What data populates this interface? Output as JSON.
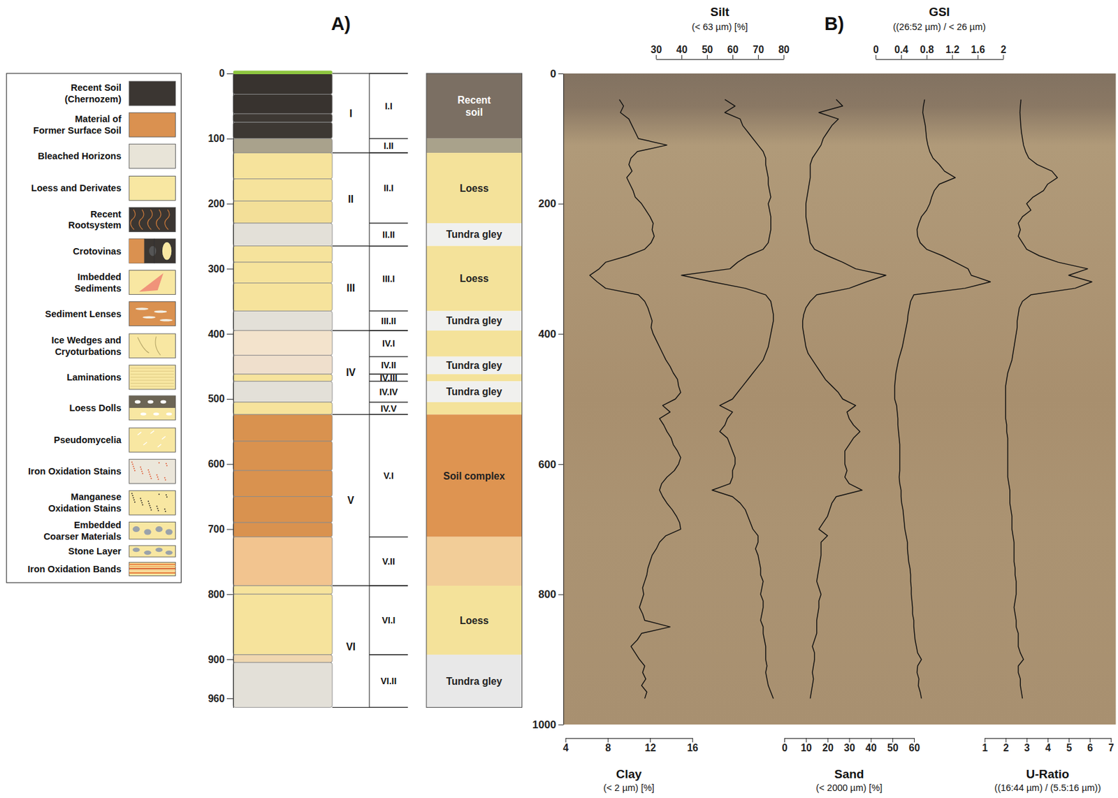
{
  "panel_labels": [
    "A)",
    "B)"
  ],
  "legend_box": {
    "items": [
      {
        "label": [
          "Recent Soil",
          "(Chernozem)"
        ],
        "color": "#3b3632"
      },
      {
        "label": [
          "Material of",
          "Former Surface Soil"
        ],
        "color": "#da9150"
      },
      {
        "label": [
          "Bleached Horizons"
        ],
        "color": "#e8e4d8"
      },
      {
        "label": [
          "Loess and Derivates"
        ],
        "color": "#f8e7a2"
      },
      {
        "label": [
          "Recent",
          "Rootsystem"
        ],
        "color": "#3b3632"
      },
      {
        "label": [
          "Crotovinas"
        ],
        "color": "#3b3632"
      },
      {
        "label": [
          "Imbedded",
          "Sediments"
        ],
        "color": "#f8e7a2"
      },
      {
        "label": [
          "Sediment Lenses"
        ],
        "color": "#da9150"
      },
      {
        "label": [
          "Ice Wedges and",
          "Cryoturbations"
        ],
        "color": "#f8e7a2"
      },
      {
        "label": [
          "Laminations"
        ],
        "color": "#f8e7a2"
      },
      {
        "label": [
          "Loess Dolls"
        ],
        "color": "#f8e7a2"
      },
      {
        "label": [
          "Pseudomycelia"
        ],
        "color": "#f8e7a2"
      },
      {
        "label": [
          "Iron Oxidation Stains"
        ],
        "color": "#ebe6da"
      },
      {
        "label": [
          "Manganese",
          "Oxidation Stains"
        ],
        "color": "#f8e7a2"
      },
      {
        "label": [
          "Embedded",
          "Coarser Materials"
        ],
        "color": "#f8e7a2"
      },
      {
        "label": [
          "Stone Layer"
        ],
        "color": "#f8e7a2"
      },
      {
        "label": [
          "Iron Oxidation Bands"
        ],
        "color": "#f8e7a2"
      }
    ]
  },
  "stratigraphy": {
    "ylim": [
      0,
      974
    ],
    "yticks": [
      0,
      100,
      200,
      300,
      400,
      500,
      600,
      700,
      800,
      900,
      960
    ],
    "beds": [
      {
        "top": 0,
        "bottom": 32,
        "color": "#38332f"
      },
      {
        "top": 32,
        "bottom": 62,
        "color": "#38332f"
      },
      {
        "top": 62,
        "bottom": 75,
        "color": "#3d3833"
      },
      {
        "top": 75,
        "bottom": 100,
        "color": "#3d3833"
      },
      {
        "top": 100,
        "bottom": 122,
        "color": "#a9a28c"
      },
      {
        "top": 122,
        "bottom": 162,
        "color": "#f6e39c"
      },
      {
        "top": 162,
        "bottom": 196,
        "color": "#f6e39c"
      },
      {
        "top": 196,
        "bottom": 230,
        "color": "#f3df98"
      },
      {
        "top": 230,
        "bottom": 265,
        "color": "#e3e0d8"
      },
      {
        "top": 265,
        "bottom": 290,
        "color": "#f6e39c"
      },
      {
        "top": 290,
        "bottom": 322,
        "color": "#f6e39c"
      },
      {
        "top": 322,
        "bottom": 365,
        "color": "#f6e39c"
      },
      {
        "top": 365,
        "bottom": 395,
        "color": "#e3e0d8"
      },
      {
        "top": 395,
        "bottom": 433,
        "color": "#f3e3cc"
      },
      {
        "top": 433,
        "bottom": 462,
        "color": "#efdfcc"
      },
      {
        "top": 462,
        "bottom": 473,
        "color": "#f6e39c"
      },
      {
        "top": 473,
        "bottom": 505,
        "color": "#e3e0d8"
      },
      {
        "top": 505,
        "bottom": 524,
        "color": "#f6e39c"
      },
      {
        "top": 524,
        "bottom": 565,
        "color": "#d9924f"
      },
      {
        "top": 565,
        "bottom": 610,
        "color": "#d9924f"
      },
      {
        "top": 610,
        "bottom": 650,
        "color": "#d9924f"
      },
      {
        "top": 650,
        "bottom": 690,
        "color": "#d9924f"
      },
      {
        "top": 690,
        "bottom": 712,
        "color": "#d9924f"
      },
      {
        "top": 712,
        "bottom": 787,
        "color": "#f2c48f"
      },
      {
        "top": 787,
        "bottom": 800,
        "color": "#f6e39c"
      },
      {
        "top": 800,
        "bottom": 893,
        "color": "#f6e39c"
      },
      {
        "top": 893,
        "bottom": 905,
        "color": "#f0d7b0"
      },
      {
        "top": 905,
        "bottom": 974,
        "color": "#e3e0d8"
      }
    ],
    "units": [
      {
        "name": "I",
        "top": 0,
        "bottom": 122
      },
      {
        "name": "II",
        "top": 122,
        "bottom": 265
      },
      {
        "name": "III",
        "top": 265,
        "bottom": 395
      },
      {
        "name": "IV",
        "top": 395,
        "bottom": 524
      },
      {
        "name": "V",
        "top": 524,
        "bottom": 787
      },
      {
        "name": "VI",
        "top": 787,
        "bottom": 974
      }
    ],
    "subunits": [
      {
        "name": "I.I",
        "top": 0,
        "bottom": 100
      },
      {
        "name": "I.II",
        "top": 100,
        "bottom": 122
      },
      {
        "name": "II.I",
        "top": 122,
        "bottom": 230
      },
      {
        "name": "II.II",
        "top": 230,
        "bottom": 265
      },
      {
        "name": "III.I",
        "top": 265,
        "bottom": 365
      },
      {
        "name": "III.II",
        "top": 365,
        "bottom": 395
      },
      {
        "name": "IV.I",
        "top": 395,
        "bottom": 435
      },
      {
        "name": "IV.II",
        "top": 435,
        "bottom": 462
      },
      {
        "name": "IV.III",
        "top": 462,
        "bottom": 473
      },
      {
        "name": "IV.IV",
        "top": 473,
        "bottom": 505
      },
      {
        "name": "IV.V",
        "top": 505,
        "bottom": 524
      },
      {
        "name": "V.I",
        "top": 524,
        "bottom": 712
      },
      {
        "name": "V.II",
        "top": 712,
        "bottom": 787
      },
      {
        "name": "VI.I",
        "top": 787,
        "bottom": 893
      },
      {
        "name": "VI.II",
        "top": 893,
        "bottom": 974
      }
    ],
    "facies": [
      {
        "label": [
          "Recent",
          "soil"
        ],
        "top": 0,
        "bottom": 100,
        "color": "#7b6f63"
      },
      {
        "label": null,
        "top": 100,
        "bottom": 122,
        "color": "#a9a28b"
      },
      {
        "label": [
          "Loess"
        ],
        "top": 122,
        "bottom": 230,
        "color": "#f4e29a"
      },
      {
        "label": [
          "Tundra gley"
        ],
        "top": 230,
        "bottom": 265,
        "color": "#f0f0ee"
      },
      {
        "label": [
          "Loess"
        ],
        "top": 265,
        "bottom": 365,
        "color": "#f4e29a"
      },
      {
        "label": [
          "Tundra gley"
        ],
        "top": 365,
        "bottom": 395,
        "color": "#f0f0ee"
      },
      {
        "label": null,
        "top": 395,
        "bottom": 435,
        "color": "#f4e29a"
      },
      {
        "label": [
          "Tundra gley"
        ],
        "top": 435,
        "bottom": 462,
        "color": "#f0f0ee"
      },
      {
        "label": null,
        "top": 462,
        "bottom": 473,
        "color": "#f4e29a"
      },
      {
        "label": [
          "Tundra gley"
        ],
        "top": 473,
        "bottom": 505,
        "color": "#f0f0ee"
      },
      {
        "label": null,
        "top": 505,
        "bottom": 524,
        "color": "#f4e29a"
      },
      {
        "label": [
          "Soil complex"
        ],
        "top": 524,
        "bottom": 712,
        "color": "#de9451"
      },
      {
        "label": null,
        "top": 712,
        "bottom": 787,
        "color": "#f2cd98"
      },
      {
        "label": [
          "Loess"
        ],
        "top": 787,
        "bottom": 893,
        "color": "#f4e29a"
      },
      {
        "label": [
          "Tundra gley"
        ],
        "top": 893,
        "bottom": 974,
        "color": "#e8e8e8"
      }
    ]
  },
  "chart_data": {
    "type": "line",
    "ylim": [
      0,
      1000
    ],
    "yticks": [
      0,
      200,
      400,
      600,
      800,
      1000
    ],
    "y": [
      40,
      50,
      60,
      70,
      80,
      90,
      100,
      110,
      120,
      130,
      140,
      150,
      160,
      170,
      180,
      190,
      200,
      210,
      220,
      230,
      240,
      250,
      260,
      270,
      280,
      290,
      300,
      310,
      320,
      330,
      340,
      350,
      360,
      370,
      380,
      390,
      400,
      410,
      420,
      430,
      440,
      450,
      460,
      470,
      480,
      490,
      500,
      510,
      520,
      530,
      540,
      550,
      560,
      570,
      580,
      590,
      600,
      610,
      620,
      630,
      640,
      650,
      660,
      670,
      680,
      690,
      700,
      710,
      720,
      730,
      740,
      750,
      760,
      770,
      780,
      790,
      800,
      810,
      820,
      830,
      840,
      850,
      860,
      870,
      880,
      890,
      900,
      910,
      920,
      930,
      940,
      950,
      960
    ],
    "series": [
      {
        "name": "Clay",
        "unit_label": "(< 2 µm) [%]",
        "axis": "bottom",
        "color": "#111111",
        "xlim": [
          4,
          16
        ],
        "xticks": [
          4,
          8,
          12,
          16
        ],
        "values": [
          9.1,
          9.5,
          9.2,
          10.0,
          10.3,
          10.6,
          10.9,
          13.6,
          10.8,
          10.2,
          10.0,
          10.3,
          9.8,
          10.1,
          10.4,
          10.6,
          11.2,
          11.6,
          12.0,
          12.3,
          12.2,
          12.4,
          12.1,
          11.5,
          9.9,
          7.8,
          7.2,
          6.3,
          7.0,
          7.8,
          10.9,
          11.5,
          11.8,
          12.0,
          12.2,
          12.1,
          12.3,
          12.6,
          12.9,
          13.2,
          13.5,
          13.9,
          14.2,
          14.6,
          14.7,
          14.9,
          14.4,
          13.2,
          13.9,
          12.9,
          13.3,
          13.6,
          14.0,
          14.2,
          14.6,
          14.9,
          14.7,
          14.3,
          13.6,
          13.1,
          12.9,
          13.2,
          13.6,
          14.1,
          14.5,
          14.8,
          14.9,
          13.5,
          12.9,
          12.6,
          12.2,
          12.0,
          11.8,
          11.7,
          11.5,
          11.3,
          11.4,
          11.2,
          11.0,
          11.3,
          11.5,
          13.9,
          11.2,
          10.8,
          10.2,
          10.6,
          11.0,
          11.5,
          11.3,
          11.6,
          11.2,
          11.7,
          11.5
        ]
      },
      {
        "name": "Silt",
        "unit_label": "(< 63 µm) [%]",
        "axis": "top",
        "color": "#111111",
        "xlim": [
          30,
          80
        ],
        "xticks": [
          30,
          40,
          50,
          60,
          70,
          80
        ],
        "values": [
          57,
          61,
          57,
          63,
          64,
          66,
          68,
          70,
          72,
          73,
          73,
          73.5,
          74,
          74,
          74.5,
          75,
          74,
          74.5,
          75,
          75,
          75,
          74.5,
          74,
          72,
          66,
          62,
          59,
          40,
          52,
          65,
          73,
          75,
          75.5,
          76,
          76,
          75.5,
          75,
          74.5,
          74,
          73,
          72,
          70,
          68,
          66,
          64,
          62,
          60,
          55,
          60,
          58,
          57,
          55,
          58,
          59,
          60,
          61,
          61,
          60,
          60,
          59,
          52,
          60,
          63,
          65,
          66,
          67,
          68,
          70,
          70,
          69,
          70,
          70.5,
          71,
          71,
          72,
          71.5,
          71,
          72,
          72,
          71.5,
          71,
          72,
          72,
          72.5,
          73,
          73,
          73,
          73.5,
          73,
          73.5,
          74,
          75,
          76
        ]
      },
      {
        "name": "Sand",
        "unit_label": "(< 2000 µm) [%]",
        "axis": "bottom",
        "color": "#111111",
        "xlim": [
          0,
          60
        ],
        "xticks": [
          0,
          10,
          20,
          30,
          40,
          50,
          60
        ],
        "values": [
          24,
          27,
          16,
          25,
          22,
          20,
          18,
          17,
          15,
          13,
          12,
          12,
          12,
          11.5,
          11,
          10.5,
          10,
          10,
          10,
          10.5,
          11,
          11.5,
          12,
          14,
          20,
          27,
          33,
          47,
          38,
          30,
          15,
          12,
          10,
          9,
          8.5,
          8.5,
          9,
          9.5,
          10,
          11,
          13,
          15,
          17,
          19,
          22,
          25,
          27,
          33,
          29,
          30,
          32,
          35,
          32,
          30,
          28,
          28,
          28,
          29,
          28,
          30,
          36,
          24,
          22,
          21,
          20,
          18,
          16,
          20,
          17,
          17,
          17,
          16.5,
          16,
          15.5,
          15,
          16,
          17,
          16,
          16,
          15.5,
          15,
          15,
          15,
          14,
          13,
          14,
          14,
          13.5,
          13,
          13.5,
          13,
          12.5,
          12
        ]
      },
      {
        "name": "GSI",
        "unit_label": "((26:52 µm) / < 26 µm)",
        "axis": "top",
        "color": "#111111",
        "xlim": [
          0,
          2
        ],
        "xticks": [
          0,
          0.4,
          0.8,
          1.2,
          1.6,
          2
        ],
        "values": [
          0.77,
          0.75,
          0.74,
          0.76,
          0.78,
          0.79,
          0.8,
          0.82,
          0.85,
          0.9,
          1.0,
          1.08,
          1.25,
          1.0,
          0.92,
          0.88,
          0.85,
          0.8,
          0.72,
          0.68,
          0.65,
          0.66,
          0.7,
          0.8,
          1.05,
          1.25,
          1.45,
          1.5,
          1.8,
          1.4,
          0.6,
          0.55,
          0.53,
          0.51,
          0.5,
          0.48,
          0.46,
          0.44,
          0.42,
          0.39,
          0.36,
          0.34,
          0.32,
          0.31,
          0.3,
          0.3,
          0.3,
          0.33,
          0.34,
          0.35,
          0.35,
          0.36,
          0.37,
          0.38,
          0.38,
          0.38,
          0.38,
          0.38,
          0.37,
          0.38,
          0.4,
          0.4,
          0.41,
          0.43,
          0.44,
          0.45,
          0.46,
          0.48,
          0.5,
          0.5,
          0.51,
          0.52,
          0.54,
          0.55,
          0.55,
          0.56,
          0.56,
          0.57,
          0.58,
          0.58,
          0.6,
          0.6,
          0.61,
          0.62,
          0.64,
          0.66,
          0.72,
          0.66,
          0.65,
          0.68,
          0.67,
          0.7,
          0.72
        ]
      },
      {
        "name": "U-Ratio",
        "unit_label": "((16:44 µm) / (5.5:16 µm))",
        "axis": "bottom",
        "color": "#111111",
        "xlim": [
          1,
          7
        ],
        "xticks": [
          1,
          2,
          3,
          4,
          5,
          6,
          7
        ],
        "values": [
          2.73,
          2.7,
          2.68,
          2.7,
          2.72,
          2.75,
          2.8,
          2.85,
          2.95,
          3.1,
          3.5,
          4.2,
          4.46,
          4.0,
          3.8,
          3.3,
          3.0,
          3.2,
          2.8,
          2.6,
          2.7,
          2.6,
          2.8,
          3.0,
          3.6,
          4.5,
          5.9,
          5.0,
          6.1,
          5.3,
          3.2,
          2.8,
          2.65,
          2.6,
          2.55,
          2.55,
          2.5,
          2.45,
          2.4,
          2.35,
          2.3,
          2.2,
          2.1,
          2.05,
          2.0,
          2.0,
          2.0,
          2.0,
          2.0,
          2.0,
          2.05,
          2.05,
          2.1,
          2.1,
          2.1,
          2.1,
          2.1,
          2.1,
          2.1,
          2.15,
          2.2,
          2.2,
          2.2,
          2.25,
          2.3,
          2.3,
          2.3,
          2.35,
          2.4,
          2.4,
          2.4,
          2.4,
          2.45,
          2.45,
          2.5,
          2.5,
          2.5,
          2.45,
          2.4,
          2.45,
          2.5,
          2.5,
          2.6,
          2.6,
          2.6,
          2.7,
          2.85,
          2.6,
          2.6,
          2.7,
          2.7,
          2.75,
          2.8
        ]
      }
    ]
  }
}
